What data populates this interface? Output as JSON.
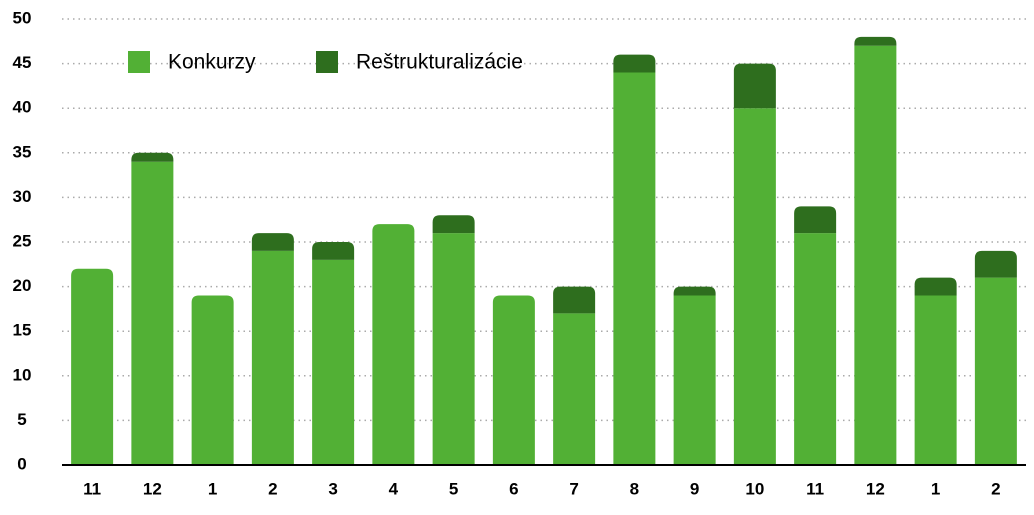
{
  "chart_data": {
    "type": "stacked_bar",
    "categories": [
      "11",
      "12",
      "1",
      "2",
      "3",
      "4",
      "5",
      "6",
      "7",
      "8",
      "9",
      "10",
      "11",
      "12",
      "1",
      "2"
    ],
    "series": [
      {
        "name": "Konkurzy",
        "color": "#52b035",
        "values": [
          22,
          34,
          19,
          24,
          23,
          27,
          26,
          19,
          17,
          44,
          19,
          40,
          26,
          47,
          19,
          21
        ]
      },
      {
        "name": "Reštrukturalizácie",
        "color": "#2e6e1e",
        "values": [
          0,
          1,
          0,
          2,
          2,
          0,
          2,
          0,
          3,
          2,
          1,
          5,
          3,
          1,
          2,
          3
        ]
      }
    ],
    "ylim": [
      0,
      50
    ],
    "yticks": [
      0,
      5,
      10,
      15,
      20,
      25,
      30,
      35,
      40,
      45,
      50
    ],
    "grid": true,
    "legend": "top-left"
  }
}
